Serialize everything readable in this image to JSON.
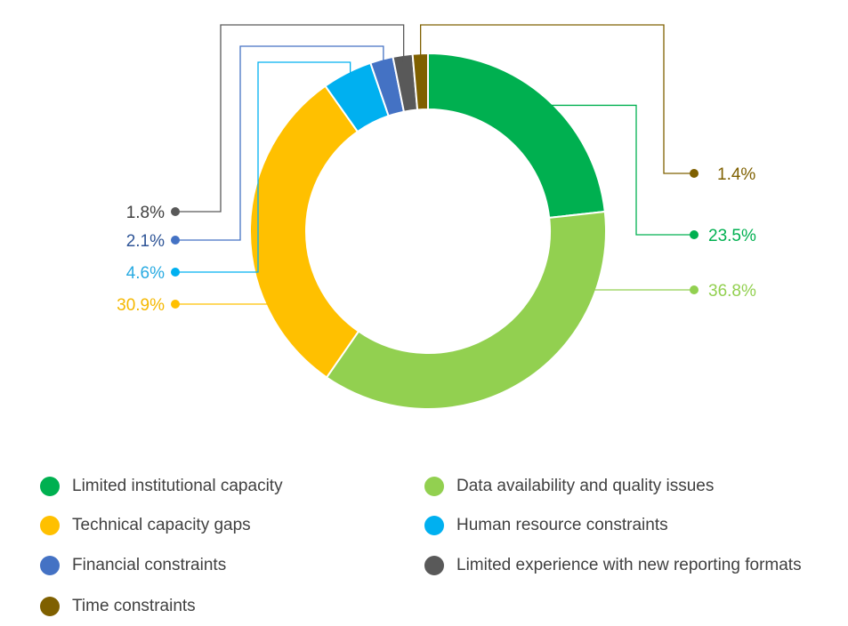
{
  "chart_data": {
    "type": "pie",
    "donut": true,
    "title": "",
    "series": [
      {
        "name": "Limited institutional capacity",
        "value": 23.5,
        "label": "23.5%",
        "color": "#00b050"
      },
      {
        "name": "Data availability and quality issues",
        "value": 36.8,
        "label": "36.8%",
        "color": "#92d050"
      },
      {
        "name": "Technical capacity gaps",
        "value": 30.9,
        "label": "30.9%",
        "color": "#ffc000"
      },
      {
        "name": "Human resource constraints",
        "value": 4.6,
        "label": "4.6%",
        "color": "#00b0f0"
      },
      {
        "name": "Financial constraints",
        "value": 2.1,
        "label": "2.1%",
        "color": "#4472c4"
      },
      {
        "name": "Limited experience with new reporting formats",
        "value": 1.8,
        "label": "1.8%",
        "color": "#595959"
      },
      {
        "name": "Time constraints",
        "value": 1.4,
        "label": "1.4%",
        "color": "#7f6000"
      }
    ],
    "label_colors": {
      "Limited institutional capacity": "#00b050",
      "Data availability and quality issues": "#92d050",
      "Technical capacity gaps": "#f5b800",
      "Human resource constraints": "#29abe2",
      "Financial constraints": "#2f5597",
      "Limited experience with new reporting formats": "#404040",
      "Time constraints": "#7f6000"
    },
    "legend_position": "bottom"
  },
  "legend": {
    "items": [
      {
        "label": "Limited institutional capacity",
        "color": "#00b050"
      },
      {
        "label": "Data availability and quality issues",
        "color": "#92d050"
      },
      {
        "label": "Technical capacity gaps",
        "color": "#ffc000"
      },
      {
        "label": "Human resource constraints",
        "color": "#00b0f0"
      },
      {
        "label": "Financial constraints",
        "color": "#4472c4"
      },
      {
        "label": "Limited experience with new reporting formats",
        "color": "#595959"
      },
      {
        "label": "Time constraints",
        "color": "#7f6000"
      }
    ]
  }
}
